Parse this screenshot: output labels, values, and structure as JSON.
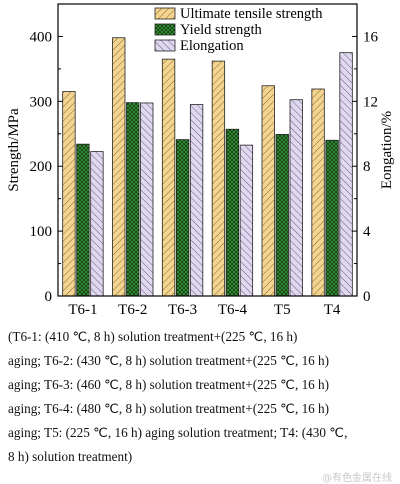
{
  "chart_data": {
    "type": "bar",
    "categories": [
      "T6-1",
      "T6-2",
      "T6-3",
      "T6-4",
      "T5",
      "T4"
    ],
    "series": [
      {
        "name": "Ultimate tensile strength",
        "axis": "left",
        "values": [
          315,
          398,
          365,
          362,
          324,
          319
        ]
      },
      {
        "name": "Yield strength",
        "axis": "left",
        "values": [
          234,
          298,
          241,
          257,
          249,
          240
        ]
      },
      {
        "name": "Elongation",
        "axis": "right",
        "values": [
          8.9,
          11.9,
          11.8,
          9.3,
          12.1,
          15.0
        ]
      }
    ],
    "ylabel": "Strength/MPa",
    "ylabel_right": "Eongation/%",
    "ylim": [
      0,
      450
    ],
    "ylim_right": [
      0,
      18
    ],
    "yticks": [
      0,
      100,
      200,
      300,
      400
    ],
    "yticks_right": [
      0,
      4,
      8,
      12,
      16
    ],
    "legend_position": "top-right",
    "grid": false
  },
  "caption": [
    "(T6-1: (410 ℃, 8 h) solution treatment+(225 ℃, 16 h)",
    "aging; T6-2: (430 ℃, 8 h) solution treatment+(225 ℃, 16 h)",
    "aging; T6-3: (460 ℃, 8 h) solution treatment+(225 ℃, 16 h)",
    "aging; T6-4: (480 ℃, 8 h) solution treatment+(225 ℃, 16 h)",
    "aging; T5: (225 ℃, 16 h) aging solution treatment; T4: (430 ℃,",
    "8 h) solution treatment)"
  ],
  "watermark": "@有色金属在线",
  "colors": {
    "uts_fill": "#f3d490",
    "yield_fill": "#3e9a3e",
    "elong_fill": "#e0d8ee",
    "axis": "#000000"
  }
}
